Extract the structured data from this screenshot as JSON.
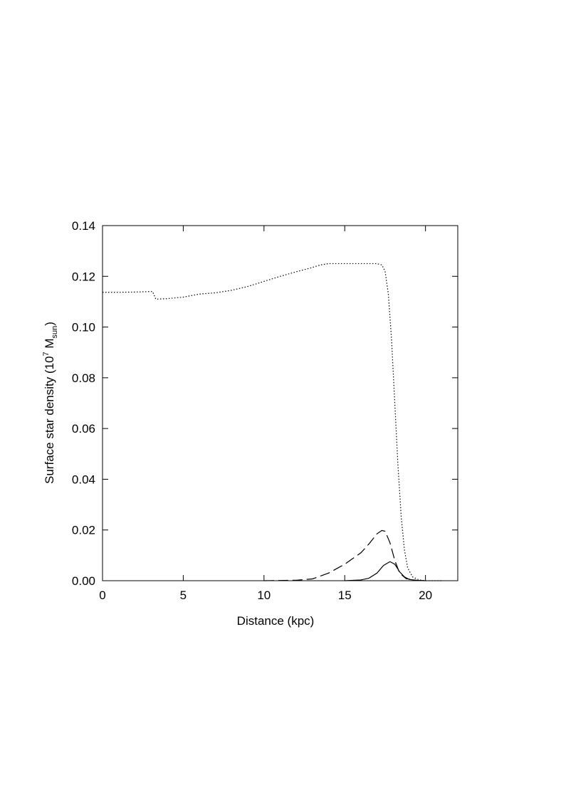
{
  "chart_data": {
    "type": "line",
    "xlabel": "Distance (kpc)",
    "ylabel": {
      "text": "Surface star density (10",
      "sup": "7",
      "mid": " M",
      "sub": "sun",
      "end": ")"
    },
    "xlim": [
      0,
      22
    ],
    "xticks": [
      0,
      5,
      10,
      15,
      20
    ],
    "ylim": [
      0,
      0.14
    ],
    "yticks": [
      {
        "value": 0,
        "label": "0.00"
      },
      {
        "value": 0.02,
        "label": "0.02"
      },
      {
        "value": 0.04,
        "label": "0.04"
      },
      {
        "value": 0.06,
        "label": "0.06"
      },
      {
        "value": 0.08,
        "label": "0.08"
      },
      {
        "value": 0.1,
        "label": "0.10"
      },
      {
        "value": 0.12,
        "label": "0.12"
      },
      {
        "value": 0.14,
        "label": "0.14"
      }
    ],
    "grid": false,
    "series": [
      {
        "color": "#000000",
        "dash": "1.5 2.5",
        "x": [
          0,
          1,
          2,
          3,
          3.1,
          3.3,
          4,
          5,
          6,
          7,
          8,
          9,
          10,
          11,
          12,
          13,
          13.5,
          14,
          15,
          16,
          17,
          17.3,
          17.5,
          17.7,
          17.9,
          18.1,
          18.3,
          18.5,
          18.7,
          18.9,
          19.2,
          19.6,
          20,
          21
        ],
        "values": [
          0.1137,
          0.1137,
          0.1138,
          0.114,
          0.114,
          0.111,
          0.1112,
          0.1118,
          0.113,
          0.1135,
          0.1145,
          0.116,
          0.118,
          0.12,
          0.1218,
          0.1235,
          0.1245,
          0.125,
          0.125,
          0.125,
          0.125,
          0.1245,
          0.122,
          0.113,
          0.095,
          0.07,
          0.045,
          0.025,
          0.012,
          0.005,
          0.0015,
          0.0003,
          0,
          0
        ]
      },
      {
        "color": "#000000",
        "dash": "14 6",
        "x": [
          10,
          12,
          13,
          14,
          15,
          16,
          16.5,
          17,
          17.3,
          17.5,
          17.8,
          18.1,
          18.4,
          18.8,
          19.5,
          20
        ],
        "values": [
          0,
          0.0002,
          0.0007,
          0.003,
          0.0065,
          0.011,
          0.0145,
          0.0185,
          0.0198,
          0.0195,
          0.015,
          0.008,
          0.003,
          0.0008,
          0.0001,
          0
        ]
      },
      {
        "color": "#000000",
        "dash": "none",
        "x": [
          15,
          16,
          16.5,
          17,
          17.4,
          17.8,
          18.1,
          18.4,
          18.7,
          19,
          19.5,
          20
        ],
        "values": [
          0,
          0.0003,
          0.001,
          0.003,
          0.006,
          0.0075,
          0.0065,
          0.0035,
          0.0015,
          0.0005,
          0.0001,
          0
        ]
      }
    ]
  }
}
